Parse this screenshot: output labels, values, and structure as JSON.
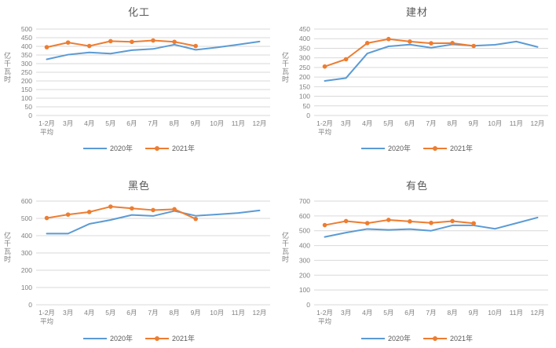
{
  "colors": {
    "background": "#FFFFFF",
    "series_2020": "#5B9BD5",
    "series_2021": "#ED7D31",
    "gridline": "#D9D9D9",
    "tick_label": "#7F7F7F",
    "title": "#595959",
    "legend_label": "#595959"
  },
  "chart_data": [
    {
      "type": "line",
      "title": "化工",
      "ylabel": "亿千瓦时",
      "ylim": [
        0,
        500
      ],
      "ytick_step": 50,
      "grid": true,
      "legend_position": "bottom",
      "categories": [
        "1-2月\n平均",
        "3月",
        "4月",
        "5月",
        "6月",
        "7月",
        "8月",
        "9月",
        "10月",
        "11月",
        "12月"
      ],
      "series": [
        {
          "name": "2020年",
          "color_key": "series_2020",
          "marker": "none",
          "values": [
            325,
            352,
            365,
            358,
            378,
            385,
            410,
            380,
            394,
            410,
            428
          ]
        },
        {
          "name": "2021年",
          "color_key": "series_2021",
          "marker": "circle",
          "values": [
            395,
            422,
            402,
            430,
            426,
            434,
            426,
            402
          ]
        }
      ]
    },
    {
      "type": "line",
      "title": "建材",
      "ylabel": "亿千瓦时",
      "ylim": [
        0,
        450
      ],
      "ytick_step": 50,
      "grid": true,
      "legend_position": "bottom",
      "categories": [
        "1-2月\n平均",
        "3月",
        "4月",
        "5月",
        "6月",
        "7月",
        "8月",
        "9月",
        "10月",
        "11月",
        "12月"
      ],
      "series": [
        {
          "name": "2020年",
          "color_key": "series_2020",
          "marker": "none",
          "values": [
            180,
            195,
            323,
            360,
            369,
            353,
            370,
            363,
            368,
            385,
            357
          ]
        },
        {
          "name": "2021年",
          "color_key": "series_2021",
          "marker": "circle",
          "values": [
            255,
            293,
            377,
            398,
            385,
            376,
            377,
            362
          ]
        }
      ]
    },
    {
      "type": "line",
      "title": "黑色",
      "ylabel": "亿千瓦时",
      "ylim": [
        0,
        600
      ],
      "ytick_step": 100,
      "grid": true,
      "legend_position": "bottom",
      "categories": [
        "1-2月\n平均",
        "3月",
        "4月",
        "5月",
        "6月",
        "7月",
        "8月",
        "9月",
        "10月",
        "11月",
        "12月"
      ],
      "series": [
        {
          "name": "2020年",
          "color_key": "series_2020",
          "marker": "none",
          "values": [
            412,
            412,
            468,
            491,
            520,
            514,
            543,
            515,
            523,
            531,
            546
          ]
        },
        {
          "name": "2021年",
          "color_key": "series_2021",
          "marker": "circle",
          "values": [
            502,
            522,
            537,
            568,
            558,
            548,
            553,
            497
          ]
        }
      ]
    },
    {
      "type": "line",
      "title": "有色",
      "ylabel": "亿千瓦时",
      "ylim": [
        0,
        700
      ],
      "ytick_step": 100,
      "grid": true,
      "legend_position": "bottom",
      "categories": [
        "1-2月\n平均",
        "3月",
        "4月",
        "5月",
        "6月",
        "7月",
        "8月",
        "9月",
        "10月",
        "11月",
        "12月"
      ],
      "series": [
        {
          "name": "2020年",
          "color_key": "series_2020",
          "marker": "none",
          "values": [
            458,
            487,
            512,
            506,
            511,
            500,
            536,
            536,
            513,
            551,
            589
          ]
        },
        {
          "name": "2021年",
          "color_key": "series_2021",
          "marker": "circle",
          "values": [
            538,
            565,
            551,
            573,
            563,
            553,
            565,
            550
          ]
        }
      ]
    }
  ]
}
